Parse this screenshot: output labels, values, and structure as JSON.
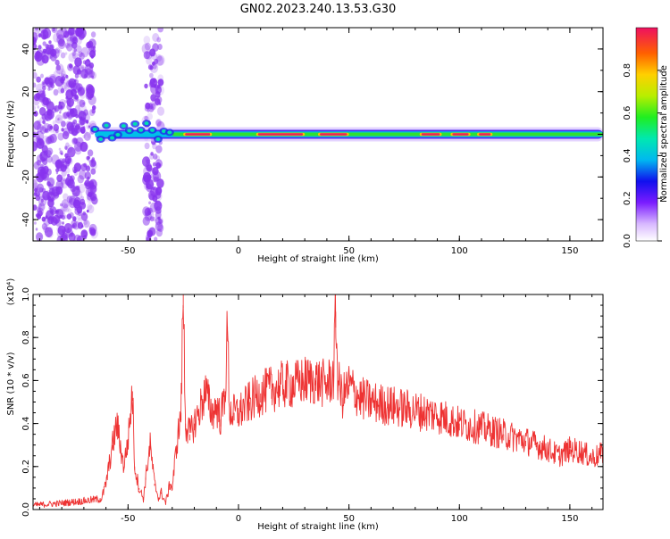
{
  "title": "GN02.2023.240.13.53.G30",
  "colors": {
    "snr_line": "#ee3333",
    "speckle": "#8833ee",
    "ridge_core": "#e8205a",
    "axis": "#000000"
  },
  "chart_data": [
    {
      "type": "heatmap",
      "xlabel": "Height of straight line (km)",
      "ylabel": "Frequency (Hz)",
      "xlim": [
        -93,
        165
      ],
      "ylim": [
        -50,
        50
      ],
      "x_ticks": [
        -50,
        0,
        50,
        100,
        150
      ],
      "y_ticks": [
        -40,
        -20,
        0,
        20,
        40
      ],
      "colorbar": {
        "label": "Normalized spectral amplitude",
        "range": [
          0,
          1
        ],
        "ticks": [
          "0.0",
          "0.2",
          "0.4",
          "0.6",
          "0.8"
        ],
        "tick_values": [
          0.0,
          0.2,
          0.4,
          0.6,
          0.8
        ]
      },
      "ridge": {
        "frequency_hz": 0,
        "x_start": -65,
        "x_end": 165,
        "peak_segments": [
          [
            -25,
            -12
          ],
          [
            8,
            30
          ],
          [
            36,
            50
          ],
          [
            82,
            92
          ],
          [
            96,
            105
          ],
          [
            108,
            115
          ]
        ]
      },
      "noise_regions": [
        {
          "x_range": [
            -93,
            -65
          ],
          "y_range": [
            -50,
            50
          ]
        },
        {
          "x_range": [
            -42,
            -35
          ],
          "y_range": [
            -50,
            50
          ]
        }
      ]
    },
    {
      "type": "line",
      "xlabel": "Height of straight line (km)",
      "ylabel": "SNR (10 * v/v)",
      "y_multiplier": "(x10⁴)",
      "xlim": [
        -93,
        165
      ],
      "ylim": [
        0,
        1.0
      ],
      "x_ticks": [
        -50,
        0,
        50,
        100,
        150
      ],
      "y_ticks": [
        "0.0",
        "0.2",
        "0.4",
        "0.6",
        "0.8",
        "1.0"
      ],
      "y_tick_values": [
        0.0,
        0.2,
        0.4,
        0.6,
        0.8,
        1.0
      ],
      "series": [
        {
          "x": [
            -93,
            -80,
            -70,
            -62,
            -60,
            -57,
            -55,
            -52,
            -50,
            -48,
            -47,
            -45,
            -43,
            -42,
            -40,
            -38,
            -36,
            -35,
            -33,
            -31,
            -30,
            -28,
            -26,
            -25,
            -24,
            -22,
            -20,
            -18,
            -15,
            -12,
            -10,
            -8,
            -6,
            -5,
            -4,
            -2,
            0,
            5,
            10,
            15,
            20,
            25,
            30,
            35,
            40,
            43,
            44,
            45,
            47,
            50,
            55,
            60,
            70,
            80,
            90,
            100,
            110,
            120,
            130,
            135,
            140,
            145,
            150,
            155,
            160,
            165
          ],
          "values": [
            0.02,
            0.03,
            0.04,
            0.05,
            0.12,
            0.3,
            0.4,
            0.2,
            0.32,
            0.55,
            0.2,
            0.1,
            0.05,
            0.15,
            0.3,
            0.12,
            0.05,
            0.08,
            0.03,
            0.12,
            0.1,
            0.3,
            0.45,
            1.02,
            0.4,
            0.35,
            0.4,
            0.45,
            0.55,
            0.45,
            0.48,
            0.42,
            0.55,
            0.85,
            0.45,
            0.45,
            0.45,
            0.5,
            0.54,
            0.56,
            0.58,
            0.58,
            0.6,
            0.6,
            0.58,
            0.62,
            0.92,
            0.6,
            0.52,
            0.58,
            0.52,
            0.5,
            0.48,
            0.46,
            0.44,
            0.4,
            0.38,
            0.35,
            0.32,
            0.3,
            0.28,
            0.25,
            0.28,
            0.27,
            0.24,
            0.26
          ]
        }
      ]
    }
  ]
}
